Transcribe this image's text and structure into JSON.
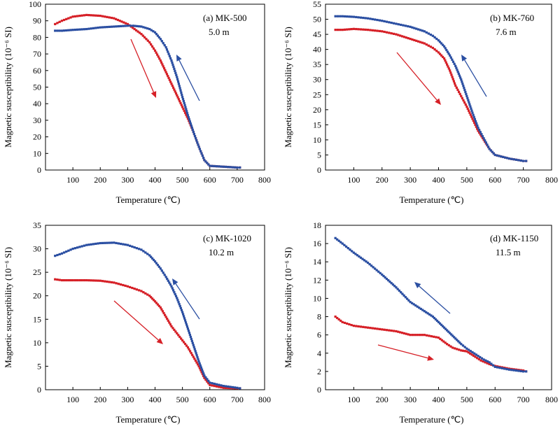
{
  "chart_data": [
    {
      "type": "line",
      "annotation": [
        "(a) MK-500",
        "5.0 m"
      ],
      "xlabel": "Temperature (℃)",
      "ylabel": "Magnetic susceptibility (10⁻⁶ SI)",
      "xlim": [
        0,
        800
      ],
      "ylim": [
        0,
        100
      ],
      "xticks": [
        100,
        200,
        300,
        400,
        500,
        600,
        700,
        800
      ],
      "yticks": [
        0,
        10,
        20,
        30,
        40,
        50,
        60,
        70,
        80,
        90,
        100
      ],
      "series": [
        {
          "color": "#d62027",
          "direction": "heating",
          "x": [
            35,
            60,
            100,
            150,
            200,
            250,
            300,
            350,
            380,
            400,
            420,
            440,
            460,
            480,
            500,
            520,
            540,
            560,
            580,
            600,
            650,
            700,
            710
          ],
          "y": [
            88,
            90,
            92.5,
            93.5,
            93,
            91.5,
            88,
            82,
            77,
            72,
            66,
            59,
            52,
            45,
            38,
            31,
            23,
            14,
            6,
            2.5,
            2,
            1.5,
            1.5
          ]
        },
        {
          "color": "#2b4fa2",
          "direction": "cooling",
          "x": [
            710,
            700,
            650,
            600,
            580,
            560,
            540,
            520,
            500,
            480,
            460,
            440,
            420,
            400,
            380,
            350,
            320,
            300,
            250,
            200,
            150,
            100,
            60,
            35
          ],
          "y": [
            1.5,
            1.5,
            2,
            2.5,
            6,
            14,
            23,
            33,
            44,
            56,
            66,
            74,
            79,
            83,
            85,
            86.5,
            87,
            87,
            86.5,
            86,
            85,
            84.5,
            84,
            84
          ]
        }
      ],
      "arrows": [
        {
          "color": "#d62027",
          "from": [
            187,
            85
          ],
          "to": [
            223,
            44
          ]
        },
        {
          "color": "#2b4fa2",
          "from": [
            290,
            45
          ],
          "to": [
            252,
            79
          ]
        }
      ]
    },
    {
      "type": "line",
      "annotation": [
        "(b) MK-760",
        "7.6 m"
      ],
      "xlabel": "Temperature (℃)",
      "ylabel": "Magnetic susceptibility (10⁻⁶ SI)",
      "xlim": [
        0,
        800
      ],
      "ylim": [
        0,
        55
      ],
      "xticks": [
        100,
        200,
        300,
        400,
        500,
        600,
        700,
        800
      ],
      "yticks": [
        0,
        5,
        10,
        15,
        20,
        25,
        30,
        35,
        40,
        45,
        50,
        55
      ],
      "series": [
        {
          "color": "#d62027",
          "direction": "heating",
          "x": [
            35,
            60,
            100,
            150,
            200,
            250,
            300,
            350,
            380,
            400,
            420,
            440,
            460,
            480,
            500,
            520,
            540,
            560,
            580,
            600,
            650,
            700,
            710
          ],
          "y": [
            46.5,
            46.5,
            46.8,
            46.5,
            46,
            45,
            43.5,
            42,
            40.5,
            39,
            37,
            33,
            28,
            24.5,
            21,
            17,
            13,
            10,
            7,
            5,
            3.8,
            3,
            3
          ]
        },
        {
          "color": "#2b4fa2",
          "direction": "cooling",
          "x": [
            710,
            700,
            650,
            600,
            580,
            560,
            540,
            520,
            500,
            480,
            460,
            440,
            420,
            400,
            380,
            350,
            300,
            250,
            200,
            150,
            100,
            60,
            35
          ],
          "y": [
            3,
            3,
            3.8,
            5,
            7,
            10.5,
            14,
            19,
            24.5,
            30,
            34.5,
            38,
            41,
            43,
            44.5,
            46,
            47.5,
            48.5,
            49.5,
            50.3,
            50.8,
            51,
            51
          ]
        }
      ],
      "arrows": [
        {
          "color": "#d62027",
          "from": [
            565,
            75
          ],
          "to": [
            632,
            151
          ]
        },
        {
          "color": "#2b4fa2",
          "from": [
            697,
            137
          ],
          "to": [
            658,
            77
          ]
        }
      ]
    },
    {
      "type": "line",
      "annotation": [
        "(c) MK-1020",
        "10.2 m"
      ],
      "xlabel": "Temperature (℃)",
      "ylabel": "Magnetic susceptibility (10⁻⁶ SI)",
      "xlim": [
        0,
        800
      ],
      "ylim": [
        0,
        35
      ],
      "xticks": [
        100,
        200,
        300,
        400,
        500,
        600,
        700,
        800
      ],
      "yticks": [
        0,
        5,
        10,
        15,
        20,
        25,
        30,
        35
      ],
      "series": [
        {
          "color": "#d62027",
          "direction": "heating",
          "x": [
            35,
            60,
            100,
            150,
            200,
            250,
            300,
            350,
            380,
            400,
            420,
            440,
            460,
            480,
            500,
            520,
            540,
            560,
            580,
            600,
            650,
            700,
            710
          ],
          "y": [
            23.5,
            23.3,
            23.3,
            23.3,
            23.2,
            22.8,
            22,
            21,
            20,
            18.8,
            17.5,
            15.5,
            13.5,
            12,
            10.5,
            9,
            7,
            5,
            2.5,
            1,
            0.4,
            0.3,
            0.3
          ]
        },
        {
          "color": "#2b4fa2",
          "direction": "cooling",
          "x": [
            710,
            700,
            650,
            600,
            580,
            560,
            540,
            520,
            500,
            480,
            460,
            440,
            420,
            400,
            380,
            350,
            300,
            250,
            200,
            150,
            100,
            60,
            35
          ],
          "y": [
            0.3,
            0.4,
            0.8,
            1.5,
            3,
            6,
            9.5,
            13,
            16.5,
            19.5,
            22,
            24,
            25.8,
            27.3,
            28.6,
            29.8,
            30.8,
            31.3,
            31.2,
            30.8,
            30,
            29,
            28.5
          ]
        }
      ],
      "arrows": [
        {
          "color": "#d62027",
          "from": [
            163,
            431
          ],
          "to": [
            233,
            493
          ]
        },
        {
          "color": "#2b4fa2",
          "from": [
            285,
            455
          ],
          "to": [
            246,
            398
          ]
        }
      ]
    },
    {
      "type": "line",
      "annotation": [
        "(d) MK-1150",
        "11.5 m"
      ],
      "xlabel": "Temperature (℃)",
      "ylabel": "Magnetic susceptibility (10⁻⁶ SI)",
      "xlim": [
        0,
        800
      ],
      "ylim": [
        0,
        18
      ],
      "xticks": [
        100,
        200,
        300,
        400,
        500,
        600,
        700,
        800
      ],
      "yticks": [
        0,
        2,
        4,
        6,
        8,
        10,
        12,
        14,
        16,
        18
      ],
      "series": [
        {
          "color": "#d62027",
          "direction": "heating",
          "x": [
            35,
            60,
            100,
            150,
            200,
            250,
            300,
            350,
            400,
            430,
            450,
            480,
            500,
            530,
            550,
            580,
            600,
            650,
            700,
            710
          ],
          "y": [
            8,
            7.4,
            7,
            6.8,
            6.6,
            6.4,
            6,
            6,
            5.7,
            5,
            4.6,
            4.3,
            4.2,
            3.6,
            3.2,
            2.8,
            2.6,
            2.3,
            2.1,
            2
          ]
        },
        {
          "color": "#2b4fa2",
          "direction": "cooling",
          "x": [
            710,
            700,
            650,
            600,
            580,
            560,
            540,
            520,
            500,
            480,
            460,
            440,
            420,
            400,
            380,
            350,
            300,
            250,
            200,
            150,
            100,
            60,
            35
          ],
          "y": [
            2,
            2,
            2.2,
            2.5,
            3,
            3.3,
            3.7,
            4.1,
            4.5,
            5,
            5.6,
            6.2,
            6.8,
            7.4,
            8,
            8.6,
            9.6,
            11.2,
            12.6,
            13.9,
            15,
            16,
            16.6
          ]
        }
      ],
      "arrows": [
        {
          "color": "#d62027",
          "from": [
            540,
            493
          ],
          "to": [
            619,
            514
          ]
        },
        {
          "color": "#2b4fa2",
          "from": [
            643,
            448
          ],
          "to": [
            590,
            402
          ]
        }
      ]
    }
  ]
}
